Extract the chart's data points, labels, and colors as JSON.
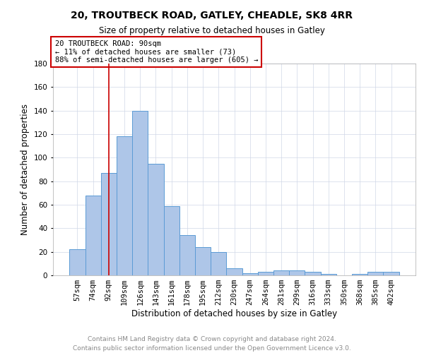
{
  "title": "20, TROUTBECK ROAD, GATLEY, CHEADLE, SK8 4RR",
  "subtitle": "Size of property relative to detached houses in Gatley",
  "xlabel": "Distribution of detached houses by size in Gatley",
  "ylabel": "Number of detached properties",
  "bin_labels": [
    "57sqm",
    "74sqm",
    "92sqm",
    "109sqm",
    "126sqm",
    "143sqm",
    "161sqm",
    "178sqm",
    "195sqm",
    "212sqm",
    "230sqm",
    "247sqm",
    "264sqm",
    "281sqm",
    "299sqm",
    "316sqm",
    "333sqm",
    "350sqm",
    "368sqm",
    "385sqm",
    "402sqm"
  ],
  "bar_heights": [
    22,
    68,
    87,
    118,
    140,
    95,
    59,
    34,
    24,
    20,
    6,
    2,
    3,
    4,
    4,
    3,
    1,
    0,
    1,
    3,
    3
  ],
  "bar_color": "#aec6e8",
  "bar_edge_color": "#5b9bd5",
  "vline_x": 2,
  "vline_color": "#cc0000",
  "annotation_text": "20 TROUTBECK ROAD: 90sqm\n← 11% of detached houses are smaller (73)\n88% of semi-detached houses are larger (605) →",
  "annotation_box_color": "#ffffff",
  "annotation_box_edge": "#cc0000",
  "ylim": [
    0,
    180
  ],
  "yticks": [
    0,
    20,
    40,
    60,
    80,
    100,
    120,
    140,
    160,
    180
  ],
  "grid_color": "#d0d8e8",
  "footer_text": "Contains HM Land Registry data © Crown copyright and database right 2024.\nContains public sector information licensed under the Open Government Licence v3.0.",
  "footer_color": "#888888",
  "background_color": "#ffffff",
  "title_fontsize": 10,
  "subtitle_fontsize": 8.5,
  "ylabel_fontsize": 8.5,
  "xlabel_fontsize": 8.5,
  "tick_fontsize": 7.5,
  "annot_fontsize": 7.5,
  "footer_fontsize": 6.5
}
